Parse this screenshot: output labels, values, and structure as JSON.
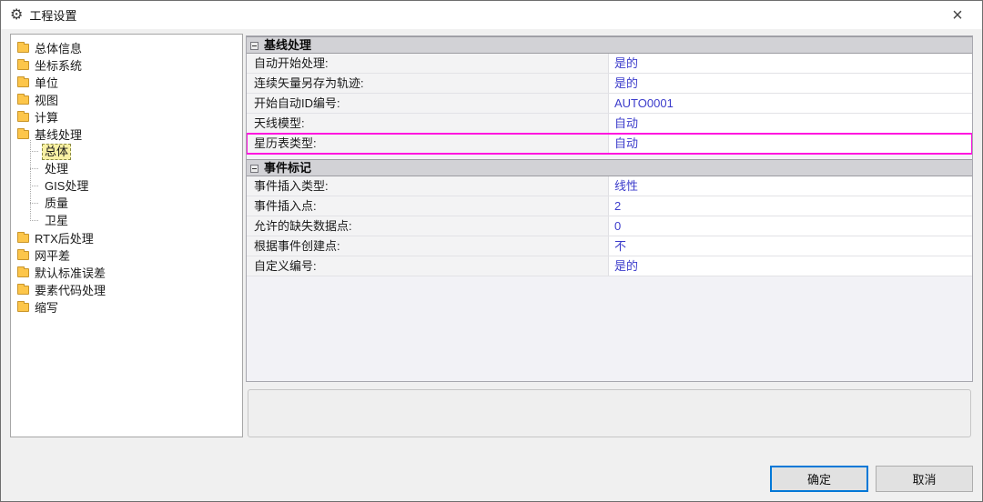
{
  "window": {
    "title": "工程设置",
    "close_glyph": "×"
  },
  "colors": {
    "accent": "#0078d7",
    "value_text": "#3c3ccb",
    "highlight": "#ff14df",
    "selected_tree_bg": "#f9f1a4",
    "group_header_bg": "#d2d2d6"
  },
  "tree": {
    "items": [
      {
        "label": "总体信息"
      },
      {
        "label": "坐标系统"
      },
      {
        "label": "单位"
      },
      {
        "label": "视图"
      },
      {
        "label": "计算"
      },
      {
        "label": "基线处理",
        "children": [
          {
            "label": "总体",
            "selected": true
          },
          {
            "label": "处理"
          },
          {
            "label": "GIS处理"
          },
          {
            "label": "质量"
          },
          {
            "label": "卫星"
          }
        ]
      },
      {
        "label": "RTX后处理"
      },
      {
        "label": "网平差"
      },
      {
        "label": "默认标准误差"
      },
      {
        "label": "要素代码处理"
      },
      {
        "label": "缩写"
      }
    ]
  },
  "panel": {
    "groups": [
      {
        "title": "基线处理",
        "rows": [
          {
            "label": "自动开始处理:",
            "value": "是的"
          },
          {
            "label": "连续矢量另存为轨迹:",
            "value": "是的"
          },
          {
            "label": "开始自动ID编号:",
            "value": "AUTO0001"
          },
          {
            "label": "天线模型:",
            "value": "自动"
          },
          {
            "label": "星历表类型:",
            "value": "自动",
            "highlighted": true
          }
        ]
      },
      {
        "title": "事件标记",
        "rows": [
          {
            "label": "事件插入类型:",
            "value": "线性"
          },
          {
            "label": "事件插入点:",
            "value": "2"
          },
          {
            "label": "允许的缺失数据点:",
            "value": "0"
          },
          {
            "label": "根据事件创建点:",
            "value": "不"
          },
          {
            "label": "自定义编号:",
            "value": "是的"
          }
        ]
      }
    ]
  },
  "buttons": {
    "ok": "确定",
    "cancel": "取消"
  }
}
